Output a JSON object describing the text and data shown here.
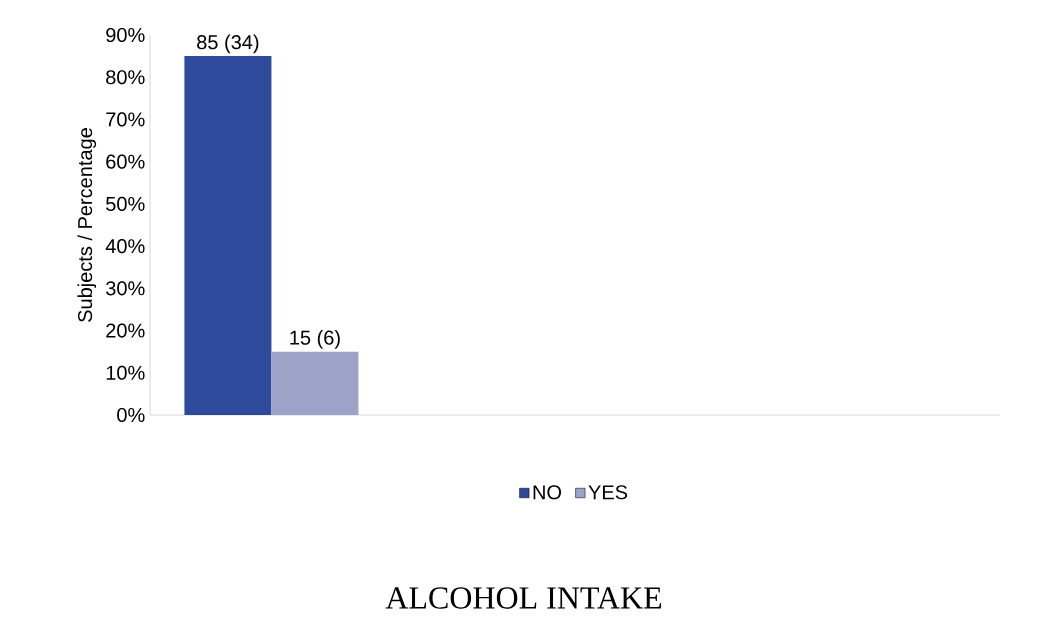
{
  "chart_data": {
    "type": "bar",
    "title": "ALCOHOL INTAKE",
    "ylabel": "Subjects / Percentage",
    "categories": [
      null
    ],
    "series": [
      {
        "name": "NO",
        "color": "#2e4a9a",
        "values": [
          85
        ],
        "value_labels": [
          "85 (34)"
        ]
      },
      {
        "name": "YES",
        "color": "#9ca3c8",
        "values": [
          15
        ],
        "value_labels": [
          "15 (6)"
        ]
      }
    ],
    "ylim": [
      0,
      90
    ],
    "yticks": [
      {
        "value": 0,
        "label": "0%"
      },
      {
        "value": 10,
        "label": "10%"
      },
      {
        "value": 20,
        "label": "20%"
      },
      {
        "value": 30,
        "label": "30%"
      },
      {
        "value": 40,
        "label": "40%"
      },
      {
        "value": 50,
        "label": "50%"
      },
      {
        "value": 60,
        "label": "60%"
      },
      {
        "value": 70,
        "label": "70%"
      },
      {
        "value": 80,
        "label": "80%"
      },
      {
        "value": 90,
        "label": "90%"
      }
    ],
    "grid": false,
    "legend": "bottom"
  }
}
